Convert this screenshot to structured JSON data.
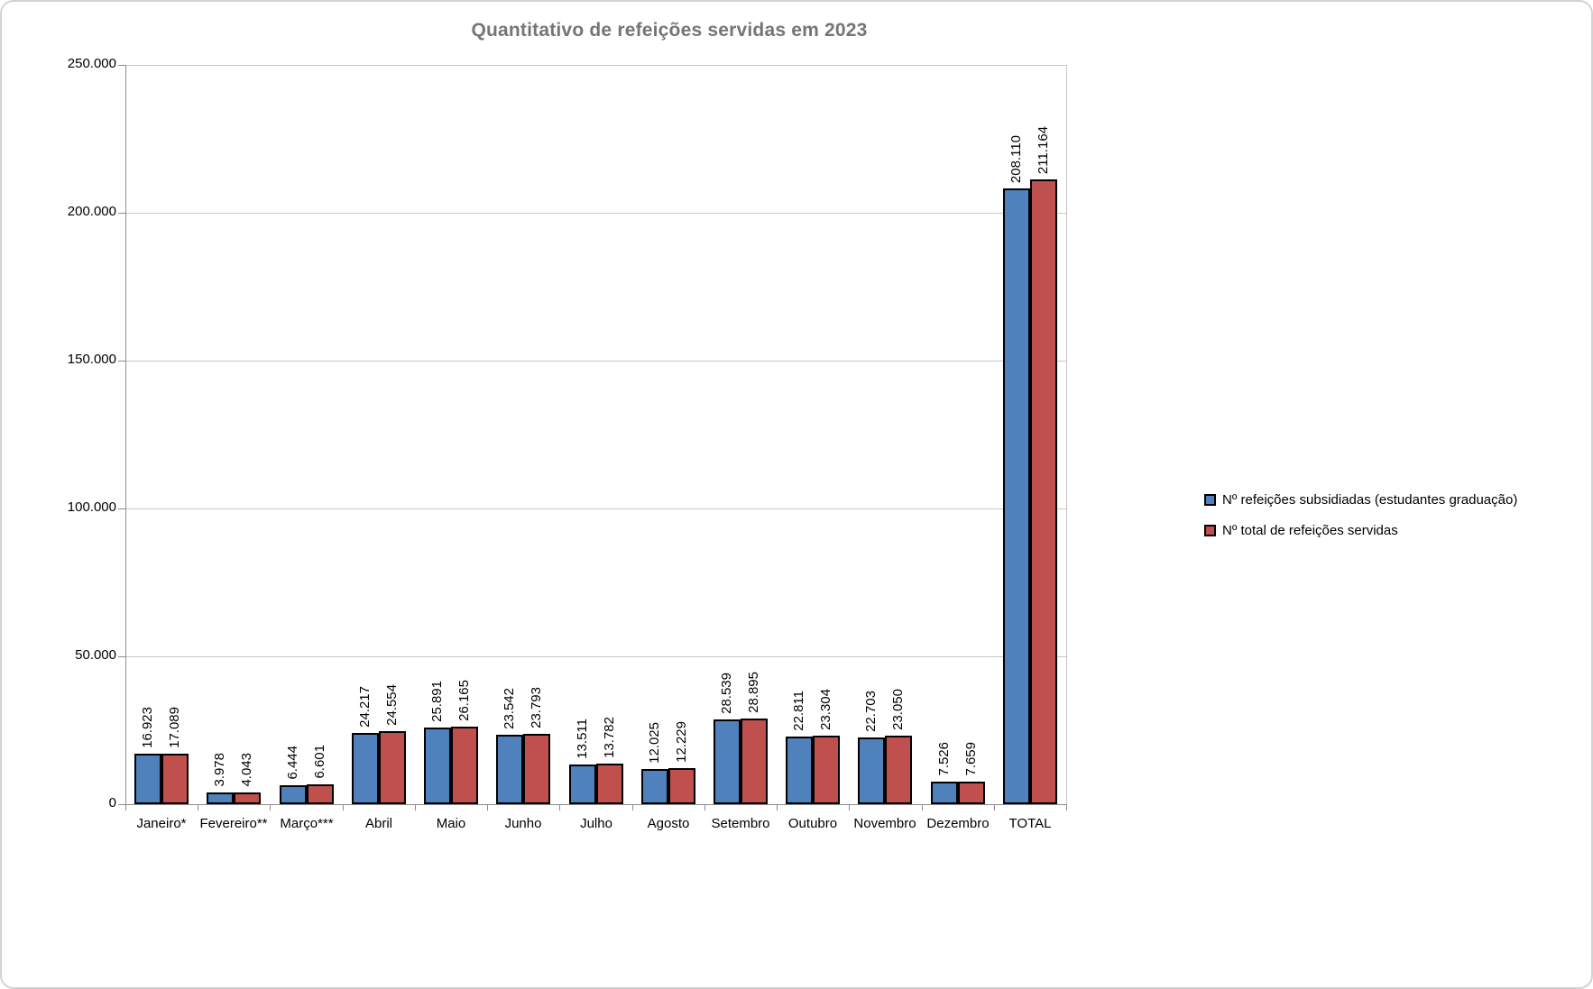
{
  "chart_data": {
    "type": "bar",
    "title": "Quantitativo de refeições servidas em 2023",
    "categories": [
      "Janeiro*",
      "Fevereiro**",
      "Março***",
      "Abril",
      "Maio",
      "Junho",
      "Julho",
      "Agosto",
      "Setembro",
      "Outubro",
      "Novembro",
      "Dezembro",
      "TOTAL"
    ],
    "series": [
      {
        "name": "Nº refeições subsidiadas (estudantes graduação)",
        "color": "#4F81BD",
        "values": [
          16923,
          3978,
          6444,
          24217,
          25891,
          23542,
          13511,
          12025,
          28539,
          22811,
          22703,
          7526,
          208110
        ],
        "labels": [
          "16.923",
          "3.978",
          "6.444",
          "24.217",
          "25.891",
          "23.542",
          "13.511",
          "12.025",
          "28.539",
          "22.811",
          "22.703",
          "7.526",
          "208.110"
        ]
      },
      {
        "name": "Nº total de refeições servidas",
        "color": "#C0504D",
        "values": [
          17089,
          4043,
          6601,
          24554,
          26165,
          23793,
          13782,
          12229,
          28895,
          23304,
          23050,
          7659,
          211164
        ],
        "labels": [
          "17.089",
          "4.043",
          "6.601",
          "24.554",
          "26.165",
          "23.793",
          "13.782",
          "12.229",
          "28.895",
          "23.304",
          "23.050",
          "7.659",
          "211.164"
        ]
      }
    ],
    "y_axis": {
      "min": 0,
      "max": 250000,
      "tick_interval": 50000,
      "tick_labels": [
        "0",
        "50.000",
        "100.000",
        "150.000",
        "200.000",
        "250.000"
      ]
    },
    "grid": true,
    "legend_position": "right",
    "bar_border_color": "#000000",
    "gridline_color": "#c6c6c6",
    "axis_color": "#8c8c8c",
    "title_color": "#757575"
  }
}
